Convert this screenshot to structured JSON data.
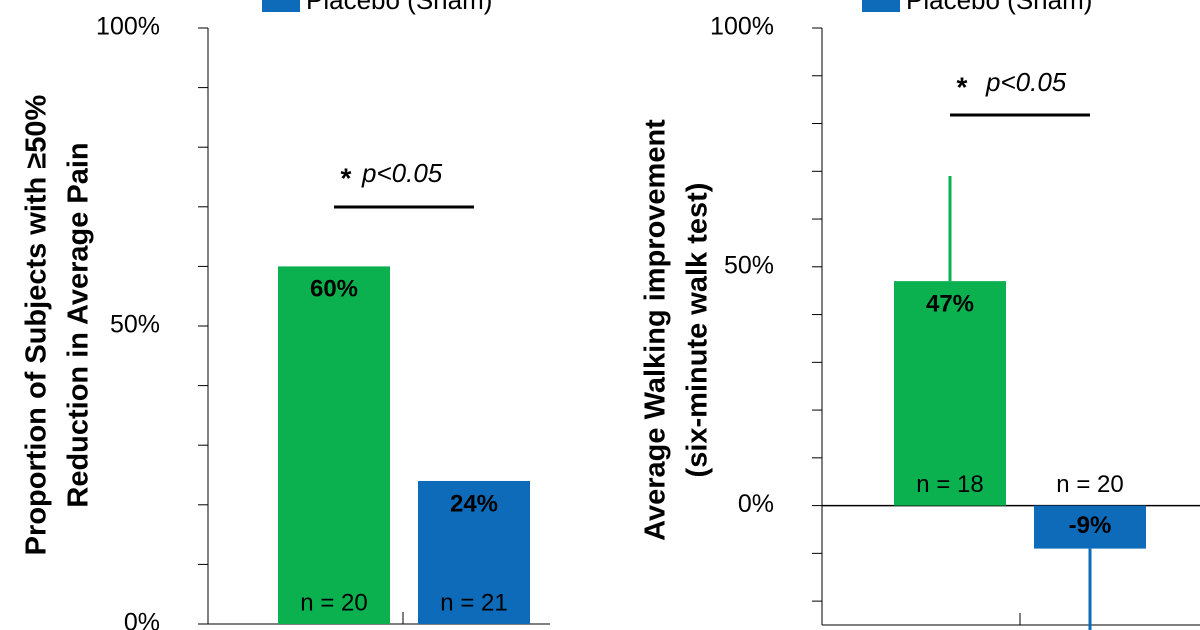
{
  "chart_data": [
    {
      "type": "bar",
      "ylabel": [
        "Proportion of Subjects with ≥50%",
        "Reduction in Average Pain"
      ],
      "ylim": [
        0,
        100
      ],
      "yticks": [
        {
          "value": 0,
          "label": "0%"
        },
        {
          "value": 50,
          "label": "50%"
        },
        {
          "value": 100,
          "label": "100%"
        }
      ],
      "minor_yticks": [
        10,
        20,
        30,
        40,
        60,
        70,
        80,
        90
      ],
      "annotation": {
        "marker": "*",
        "text": "p<0.05"
      },
      "series": [
        {
          "color": "#0bb04f",
          "values": [
            60
          ],
          "value_labels": [
            "60%"
          ],
          "n_label": "n = 20"
        },
        {
          "name": "Placebo (Sham)",
          "color": "#0e6bb9",
          "values": [
            24
          ],
          "value_labels": [
            "24%"
          ],
          "n_label": "n = 21"
        }
      ]
    },
    {
      "type": "bar",
      "ylabel": [
        "Average Walking improvement",
        "(six-minute walk test)"
      ],
      "ylim": [
        -25,
        100
      ],
      "yticks": [
        {
          "value": 0,
          "label": "0%"
        },
        {
          "value": 50,
          "label": "50%"
        },
        {
          "value": 100,
          "label": "100%"
        }
      ],
      "minor_yticks": [
        -20,
        -10,
        10,
        20,
        30,
        40,
        60,
        70,
        80,
        90
      ],
      "annotation": {
        "marker": "*",
        "text": "p<0.05"
      },
      "series": [
        {
          "color": "#0bb04f",
          "values": [
            47
          ],
          "value_labels": [
            "47%"
          ],
          "errors": [
            22
          ],
          "n_label": "n = 18"
        },
        {
          "name": "Placebo (Sham)",
          "color": "#0e6bb9",
          "values": [
            -9
          ],
          "value_labels": [
            "-9%"
          ],
          "errors": [
            20
          ],
          "n_label": "n = 20"
        }
      ]
    }
  ]
}
